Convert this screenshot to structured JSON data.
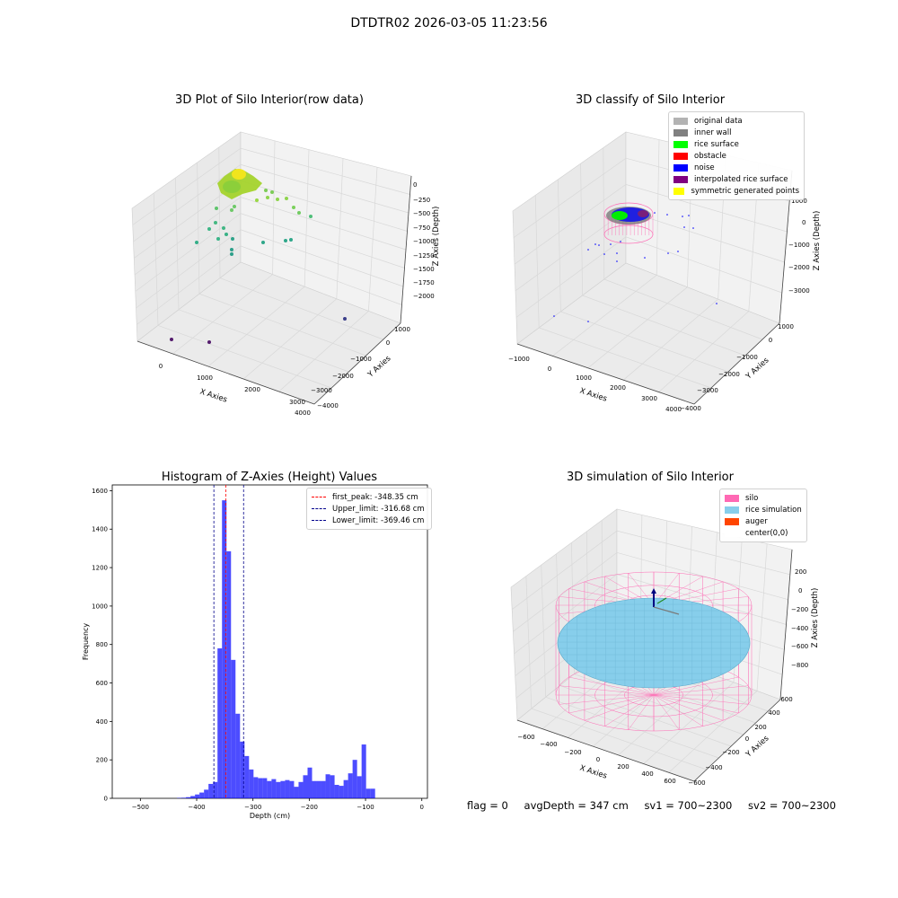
{
  "suptitle": "DTDTR02 2026-03-05 11:23:56",
  "panels": {
    "raw": {
      "title": "3D Plot of Silo Interior(row data)",
      "xlabel": "X Axies",
      "ylabel": "Y Axies",
      "zlabel": "Z Axies (Depth)",
      "xticks": [
        "0",
        "1000",
        "2000",
        "3000",
        "4000"
      ],
      "yticks": [
        "1000",
        "0",
        "−1000",
        "−2000",
        "−3000",
        "−4000"
      ],
      "zticks": [
        "0",
        "−250",
        "−500",
        "−750",
        "−1000",
        "−1250",
        "−1500",
        "−1750",
        "−2000"
      ]
    },
    "classify": {
      "title": "3D classify of Silo Interior",
      "xlabel": "X Axies",
      "ylabel": "Y Axies",
      "zlabel": "Z Axies (Depth)",
      "xticks": [
        "−1000",
        "0",
        "1000",
        "2000",
        "3000",
        "4000"
      ],
      "yticks": [
        "1000",
        "0",
        "−1000",
        "−2000",
        "−3000",
        "−4000"
      ],
      "zticks": [
        "1000",
        "0",
        "−1000",
        "−2000",
        "−3000"
      ],
      "legend": [
        {
          "label": "original data",
          "color": "#b3b3b3"
        },
        {
          "label": "inner wall",
          "color": "#808080"
        },
        {
          "label": "rice surface",
          "color": "#00ff00"
        },
        {
          "label": "obstacle",
          "color": "#ff0000"
        },
        {
          "label": "noise",
          "color": "#0000ff"
        },
        {
          "label": "interpolated rice surface",
          "color": "#800080"
        },
        {
          "label": "symmetric generated points",
          "color": "#ffff00"
        }
      ]
    },
    "histogram": {
      "title": "Histogram of Z-Axies (Height) Values",
      "xlabel": "Depth (cm)",
      "ylabel": "Frequency",
      "legend": [
        {
          "label": "first_peak: -348.35 cm",
          "color": "#ff0000"
        },
        {
          "label": "Upper_limit: -316.68 cm",
          "color": "#00008b"
        },
        {
          "label": "Lower_limit: -369.46 cm",
          "color": "#00008b"
        }
      ]
    },
    "simulation": {
      "title": "3D simulation of Silo Interior",
      "xlabel": "X Axies",
      "ylabel": "Y Axies",
      "zlabel": "Z Axies (Depth)",
      "xticks": [
        "−600",
        "−400",
        "−200",
        "0",
        "200",
        "400",
        "600"
      ],
      "yticks": [
        "600",
        "400",
        "200",
        "0",
        "−200",
        "−400",
        "−600"
      ],
      "zticks": [
        "200",
        "0",
        "−200",
        "−400",
        "−600",
        "−800"
      ],
      "legend": [
        {
          "label": "silo",
          "color": "#ff69b4"
        },
        {
          "label": "rice simulation",
          "color": "#87ceeb"
        },
        {
          "label": "auger",
          "color": "#ff4500"
        },
        {
          "label": "center(0,0)",
          "color": "#ffffff"
        }
      ]
    }
  },
  "status": {
    "flag": "flag = 0",
    "avg_depth": "avgDepth = 347 cm",
    "sv1": "sv1 = 700~2300",
    "sv2": "sv2 = 700~2300"
  },
  "chart_data": [
    {
      "type": "scatter",
      "title": "3D Plot of Silo Interior(row data)",
      "xlabel": "X Axies",
      "ylabel": "Y Axies",
      "zlabel": "Z Axies (Depth)",
      "xlim": [
        -500,
        4000
      ],
      "ylim": [
        -4000,
        1500
      ],
      "zlim": [
        -2100,
        100
      ]
    },
    {
      "type": "scatter",
      "title": "3D classify of Silo Interior",
      "xlabel": "X Axies",
      "ylabel": "Y Axies",
      "zlabel": "Z Axies (Depth)",
      "series": [
        {
          "name": "original data"
        },
        {
          "name": "inner wall"
        },
        {
          "name": "rice surface"
        },
        {
          "name": "obstacle"
        },
        {
          "name": "noise"
        },
        {
          "name": "interpolated rice surface"
        },
        {
          "name": "symmetric generated points"
        }
      ]
    },
    {
      "type": "bar",
      "title": "Histogram of Z-Axies (Height) Values",
      "xlabel": "Depth (cm)",
      "ylabel": "Frequency",
      "xlim": [
        -550,
        10
      ],
      "ylim": [
        0,
        1630
      ],
      "xticks": [
        -500,
        -400,
        -300,
        -200,
        -100,
        0
      ],
      "yticks": [
        0,
        200,
        400,
        600,
        800,
        1000,
        1200,
        1400,
        1600
      ],
      "bin_width": 8,
      "bins": [
        [
          -435,
          2
        ],
        [
          -427,
          3
        ],
        [
          -419,
          6
        ],
        [
          -411,
          12
        ],
        [
          -403,
          20
        ],
        [
          -395,
          30
        ],
        [
          -387,
          45
        ],
        [
          -379,
          75
        ],
        [
          -371,
          85
        ],
        [
          -363,
          780
        ],
        [
          -355,
          1550
        ],
        [
          -347,
          1285
        ],
        [
          -339,
          720
        ],
        [
          -331,
          440
        ],
        [
          -323,
          295
        ],
        [
          -315,
          220
        ],
        [
          -307,
          150
        ],
        [
          -299,
          110
        ],
        [
          -291,
          105
        ],
        [
          -283,
          105
        ],
        [
          -275,
          90
        ],
        [
          -267,
          100
        ],
        [
          -259,
          85
        ],
        [
          -251,
          90
        ],
        [
          -243,
          95
        ],
        [
          -235,
          90
        ],
        [
          -227,
          60
        ],
        [
          -219,
          85
        ],
        [
          -211,
          120
        ],
        [
          -203,
          160
        ],
        [
          -195,
          90
        ],
        [
          -187,
          90
        ],
        [
          -179,
          90
        ],
        [
          -171,
          125
        ],
        [
          -163,
          120
        ],
        [
          -155,
          70
        ],
        [
          -147,
          65
        ],
        [
          -139,
          95
        ],
        [
          -131,
          130
        ],
        [
          -123,
          200
        ],
        [
          -115,
          115
        ],
        [
          -107,
          280
        ],
        [
          -99,
          50
        ],
        [
          -91,
          50
        ]
      ],
      "vlines": [
        {
          "name": "first_peak: -348.35 cm",
          "x": -348.35,
          "color": "#ff0000"
        },
        {
          "name": "Upper_limit: -316.68 cm",
          "x": -316.68,
          "color": "#00008b"
        },
        {
          "name": "Lower_limit: -369.46 cm",
          "x": -369.46,
          "color": "#00008b"
        }
      ]
    },
    {
      "type": "scatter",
      "title": "3D simulation of Silo Interior",
      "xlabel": "X Axies",
      "ylabel": "Y Axies",
      "zlabel": "Z Axies (Depth)",
      "xlim": [
        -700,
        700
      ],
      "ylim": [
        -700,
        700
      ],
      "zlim": [
        -950,
        350
      ],
      "series": [
        {
          "name": "silo"
        },
        {
          "name": "rice simulation"
        },
        {
          "name": "auger"
        },
        {
          "name": "center(0,0)"
        }
      ]
    }
  ]
}
